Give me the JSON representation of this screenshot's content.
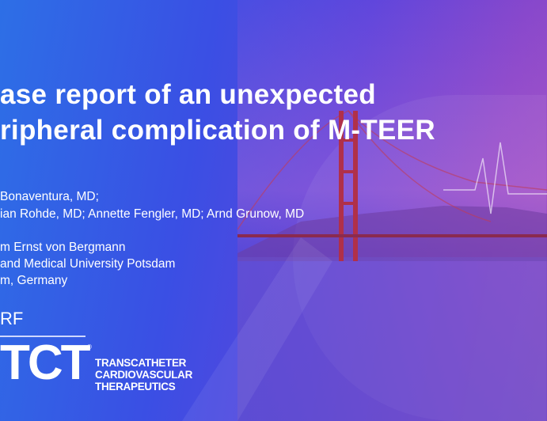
{
  "slide": {
    "title_lines": [
      "ase report of an unexpected",
      "ripheral complication of M-TEER"
    ],
    "authors": [
      "Bonaventura, MD;",
      "ian Rohde, MD; Annette Fengler, MD; Arnd Grunow, MD"
    ],
    "affiliation": [
      "m  Ernst von Bergmann",
      "and Medical University Potsdam",
      "m, Germany"
    ]
  },
  "logo": {
    "crf": "RF",
    "tct": "TCT",
    "tagline": [
      "TRANSCATHETER",
      "CARDIOVASCULAR",
      "THERAPEUTICS"
    ]
  },
  "colors": {
    "bg_left": "#2d6fe6",
    "bg_right": "#9a4cc0",
    "bridge": "#b0304a"
  }
}
